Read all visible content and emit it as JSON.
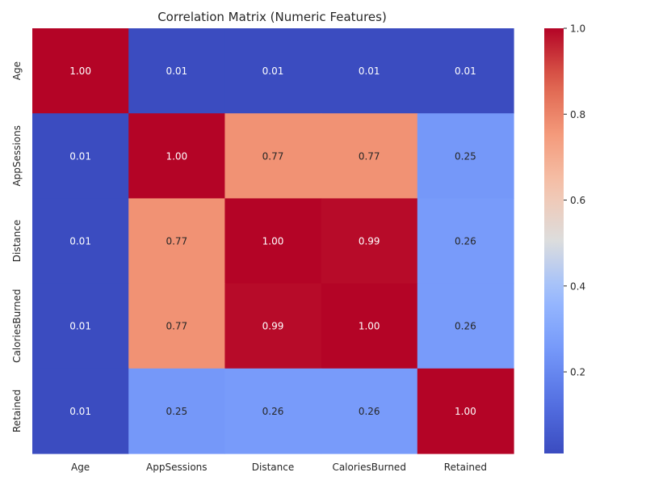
{
  "chart_data": {
    "type": "heatmap",
    "title": "Correlation Matrix (Numeric Features)",
    "xlabel": "",
    "ylabel": "",
    "x_categories": [
      "Age",
      "AppSessions",
      "Distance",
      "CaloriesBurned",
      "Retained"
    ],
    "y_categories": [
      "Age",
      "AppSessions",
      "Distance",
      "CaloriesBurned",
      "Retained"
    ],
    "values": [
      [
        1.0,
        0.01,
        0.01,
        0.01,
        0.01
      ],
      [
        0.01,
        1.0,
        0.77,
        0.77,
        0.25
      ],
      [
        0.01,
        0.77,
        1.0,
        0.99,
        0.26
      ],
      [
        0.01,
        0.77,
        0.99,
        1.0,
        0.26
      ],
      [
        0.01,
        0.25,
        0.26,
        0.26,
        1.0
      ]
    ],
    "annotation_format": "0.00",
    "colormap": "coolwarm",
    "colorbar": {
      "range": [
        0.01,
        1.0
      ],
      "ticks": [
        0.2,
        0.4,
        0.6,
        0.8,
        1.0
      ],
      "tick_labels": [
        "0.2",
        "0.4",
        "0.6",
        "0.8",
        "1.0"
      ]
    },
    "grid": false
  }
}
